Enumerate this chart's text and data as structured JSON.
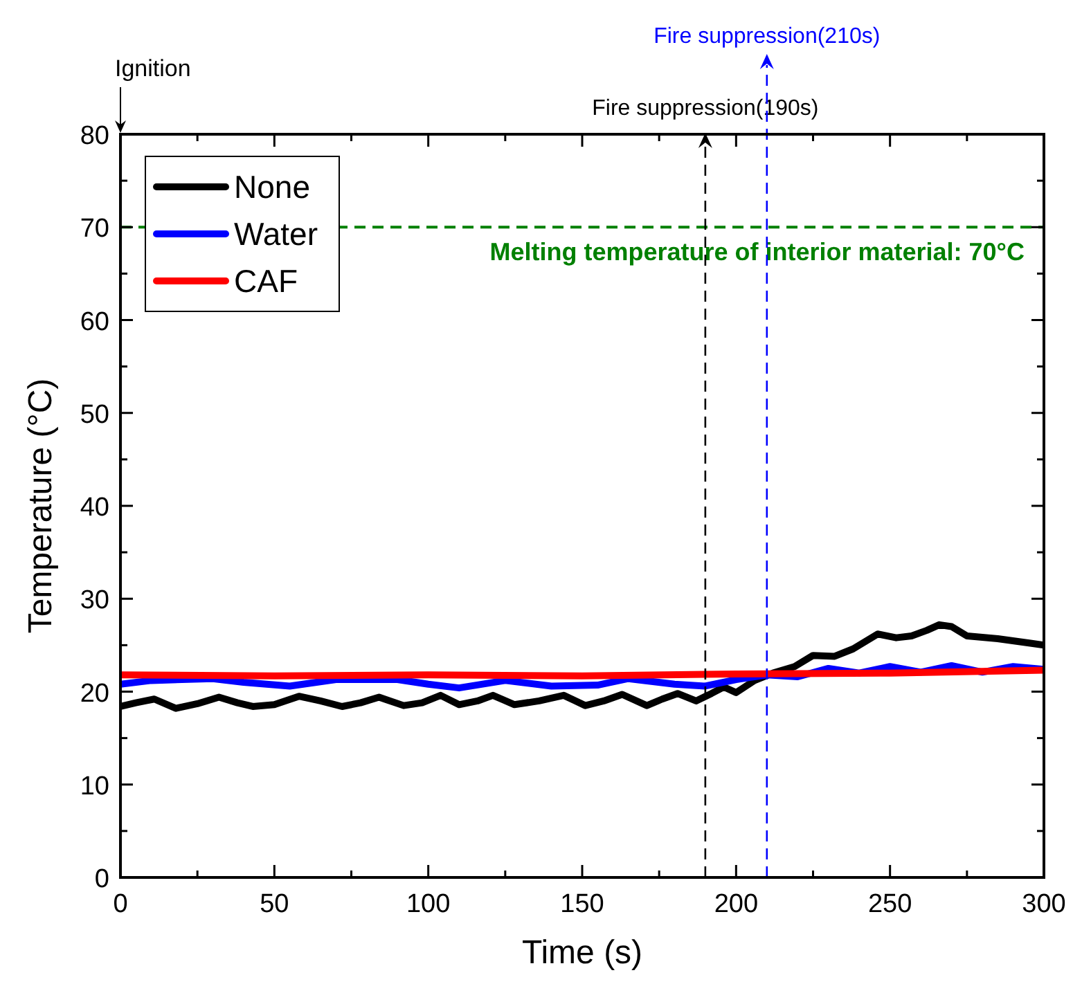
{
  "chart_data": {
    "type": "line",
    "xlabel": "Time (s)",
    "ylabel": "Temperature (°C)",
    "xlim": [
      0,
      300
    ],
    "ylim": [
      0,
      80
    ],
    "xticks": [
      0,
      {
        "value": 25,
        "label": null
      },
      50,
      {
        "value": 75,
        "label": null
      },
      100,
      {
        "value": 125,
        "label": null
      },
      150,
      {
        "value": 175,
        "label": null
      },
      200,
      {
        "value": 225,
        "label": null
      },
      250,
      {
        "value": 275,
        "label": null
      },
      300
    ],
    "yticks": [
      0,
      {
        "value": 5,
        "label": null
      },
      10,
      {
        "value": 15,
        "label": null
      },
      20,
      {
        "value": 25,
        "label": null
      },
      30,
      {
        "value": 35,
        "label": null
      },
      40,
      {
        "value": 45,
        "label": null
      },
      50,
      {
        "value": 55,
        "label": null
      },
      60,
      {
        "value": 65,
        "label": null
      },
      70,
      {
        "value": 75,
        "label": null
      },
      80
    ],
    "legend": "top left",
    "grid": false,
    "line_style": "solid",
    "marker": "none",
    "series": [
      {
        "name": "None",
        "color": "#000000",
        "x": [
          0,
          5,
          11,
          18,
          25,
          32,
          38,
          43,
          50,
          58,
          65,
          72,
          78,
          84,
          92,
          98,
          104,
          110,
          116,
          121,
          128,
          136,
          144,
          151,
          157,
          163,
          171,
          176,
          181,
          187,
          192,
          196,
          200,
          206,
          212,
          219,
          225,
          232,
          238,
          246,
          252,
          257,
          262,
          266,
          270,
          275,
          285,
          296,
          300
        ],
        "values": [
          18.4,
          18.8,
          19.2,
          18.2,
          18.7,
          19.4,
          18.8,
          18.4,
          18.6,
          19.5,
          19.0,
          18.4,
          18.8,
          19.4,
          18.5,
          18.8,
          19.6,
          18.6,
          19.0,
          19.6,
          18.6,
          19.0,
          19.6,
          18.5,
          19.0,
          19.7,
          18.5,
          19.2,
          19.8,
          19.0,
          19.8,
          20.5,
          19.9,
          21.2,
          22.0,
          22.7,
          23.9,
          23.8,
          24.6,
          26.2,
          25.8,
          26.0,
          26.6,
          27.2,
          27.0,
          26.0,
          25.7,
          25.2,
          25.0
        ]
      },
      {
        "name": "Water",
        "color": "#0000ff",
        "x": [
          0,
          10,
          30,
          40,
          55,
          70,
          90,
          100,
          110,
          125,
          140,
          155,
          165,
          180,
          190,
          200,
          210,
          220,
          230,
          240,
          250,
          260,
          270,
          280,
          290,
          300
        ],
        "values": [
          20.8,
          21.2,
          21.4,
          21.0,
          20.6,
          21.3,
          21.3,
          20.8,
          20.4,
          21.2,
          20.6,
          20.7,
          21.4,
          20.8,
          20.6,
          21.3,
          21.8,
          21.6,
          22.5,
          22.0,
          22.7,
          22.1,
          22.8,
          22.1,
          22.7,
          22.4
        ]
      },
      {
        "name": "CAF",
        "color": "#ff0000",
        "x": [
          0,
          50,
          100,
          150,
          200,
          250,
          300
        ],
        "values": [
          21.8,
          21.7,
          21.8,
          21.7,
          21.9,
          22.0,
          22.3
        ]
      }
    ],
    "ref_lines": [
      {
        "axis": "y",
        "value": 70,
        "label": "Melting temperature of interior material: 70°C",
        "color": "#008000",
        "line_style": "dashed"
      },
      {
        "axis": "x",
        "value": 190,
        "label": "Fire suppression(190s)",
        "color": "#000000",
        "line_style": "dashed"
      },
      {
        "axis": "x",
        "value": 210,
        "label": "Fire suppression(210s)",
        "color": "#0000ff",
        "line_style": "dashed"
      }
    ],
    "annotations": [
      "Ignition"
    ]
  }
}
